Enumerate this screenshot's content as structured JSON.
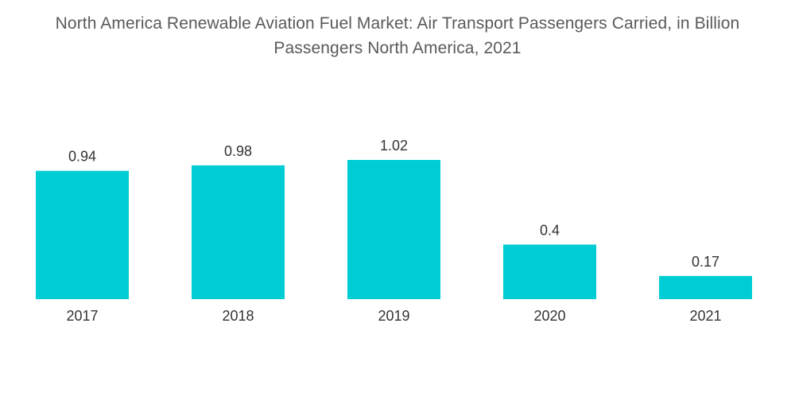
{
  "chart_data": {
    "type": "bar",
    "title_lines": [
      "North America Renewable Aviation Fuel Market: Air Transport Passengers Carried, in Billion",
      "Passengers North America, 2021"
    ],
    "categories": [
      "2017",
      "2018",
      "2019",
      "2020",
      "2021"
    ],
    "values": [
      0.94,
      0.98,
      1.02,
      0.4,
      0.17
    ],
    "value_labels": [
      "0.94",
      "0.98",
      "1.02",
      "0.4",
      "0.17"
    ],
    "xlabel": "",
    "ylabel": "",
    "ylim": [
      0,
      1.02
    ],
    "grid": false,
    "legend": "none",
    "color": "#00cdd3"
  }
}
